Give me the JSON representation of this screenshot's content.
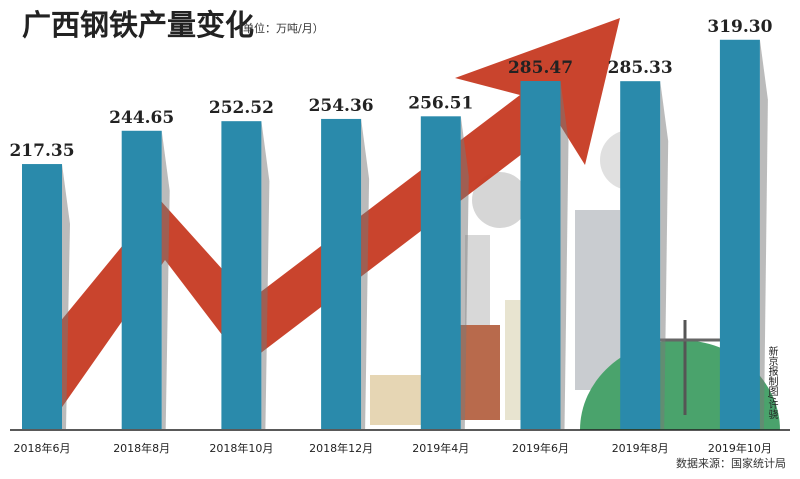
{
  "chart_data": {
    "type": "bar",
    "title": "广西钢铁产量变化",
    "unit": "（单位：万吨/月）",
    "categories": [
      "2018年6月",
      "2018年8月",
      "2018年10月",
      "2018年12月",
      "2019年4月",
      "2019年6月",
      "2019年8月",
      "2019年10月"
    ],
    "values": [
      217.35,
      244.65,
      252.52,
      254.36,
      256.51,
      285.47,
      285.33,
      319.3
    ],
    "value_labels": [
      "217.35",
      "244.65",
      "252.52",
      "254.36",
      "256.51",
      "285.47",
      "285.33",
      "319.30"
    ],
    "ylim": [
      0,
      330
    ],
    "grid": false,
    "bar_color": "#2a8aab",
    "arrow_color": "#c63a22"
  },
  "credit": "新京报制图/许骁",
  "source": "数据来源：国家统计局"
}
